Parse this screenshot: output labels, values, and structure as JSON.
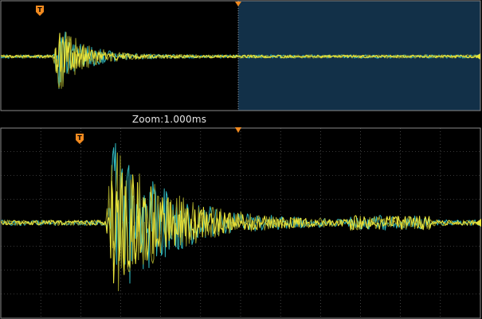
{
  "zoom": {
    "label": "Zoom:1.000ms"
  },
  "markers": {
    "trigger_symbol": "T"
  },
  "colors": {
    "background": "#000000",
    "zoom_window": "#123048",
    "trace_yellow": "#e8e33a",
    "trace_cyan": "#2fb7bd",
    "trace_olive": "#9a9a28",
    "trigger_marker": "#f28a1f",
    "grid": "#6e6e6e",
    "border": "#8a8a8a"
  },
  "icons": {
    "trigger_marker": "trigger-position-icon",
    "time_reference": "time-reference-icon"
  }
}
